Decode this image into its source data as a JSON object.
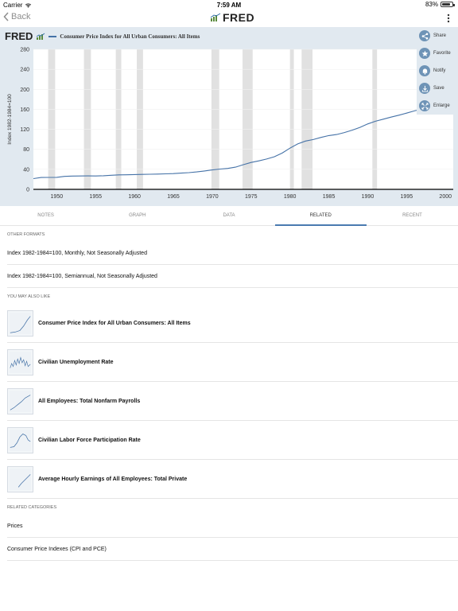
{
  "status": {
    "carrier": "Carrier",
    "time": "7:59 AM",
    "battery": "83%"
  },
  "nav": {
    "back_label": "Back",
    "logo_text": "FRED"
  },
  "chart_header": {
    "logo_text": "FRED",
    "title": "Consumer Price Index for All Urban Consumers: All Items"
  },
  "side_menu": [
    {
      "label": "Share",
      "icon": "share-icon"
    },
    {
      "label": "Favorite",
      "icon": "star-icon"
    },
    {
      "label": "Notify",
      "icon": "bell-icon"
    },
    {
      "label": "Save",
      "icon": "download-icon"
    },
    {
      "label": "Enlarge",
      "icon": "enlarge-icon"
    }
  ],
  "chart_data": {
    "type": "line",
    "title": "Consumer Price Index for All Urban Consumers: All Items",
    "ylabel": "Index 1982-1984=100",
    "xlabel": "",
    "xlim": [
      1947,
      2001
    ],
    "ylim": [
      0,
      280
    ],
    "y_ticks": [
      0,
      40,
      80,
      120,
      160,
      200,
      240,
      280
    ],
    "x_ticks": [
      1950,
      1955,
      1960,
      1965,
      1970,
      1975,
      1980,
      1985,
      1990,
      1995,
      2000
    ],
    "recessions": [
      [
        1948.9,
        1949.8
      ],
      [
        1953.5,
        1954.4
      ],
      [
        1957.6,
        1958.3
      ],
      [
        1960.3,
        1961.1
      ],
      [
        1969.9,
        1970.9
      ],
      [
        1973.9,
        1975.2
      ],
      [
        1980.0,
        1980.5
      ],
      [
        1981.5,
        1982.9
      ],
      [
        1990.6,
        1991.2
      ]
    ],
    "series": [
      {
        "name": "Consumer Price Index for All Urban Consumers: All Items",
        "color": "#4572a7",
        "x": [
          1947,
          1948,
          1949,
          1950,
          1951,
          1952,
          1953,
          1954,
          1955,
          1956,
          1957,
          1958,
          1959,
          1960,
          1961,
          1962,
          1963,
          1964,
          1965,
          1966,
          1967,
          1968,
          1969,
          1970,
          1971,
          1972,
          1973,
          1974,
          1975,
          1976,
          1977,
          1978,
          1979,
          1980,
          1981,
          1982,
          1983,
          1984,
          1985,
          1986,
          1987,
          1988,
          1989,
          1990,
          1991,
          1992,
          1993,
          1994,
          1995,
          1996,
          1997,
          1998,
          1999,
          2000
        ],
        "values": [
          21.5,
          23.7,
          23.8,
          24.1,
          26.0,
          26.5,
          26.7,
          26.9,
          26.8,
          27.2,
          28.1,
          28.9,
          29.1,
          29.6,
          29.9,
          30.2,
          30.6,
          31.0,
          31.5,
          32.4,
          33.4,
          34.8,
          36.7,
          38.8,
          40.5,
          41.8,
          44.4,
          49.3,
          53.8,
          56.9,
          60.6,
          65.2,
          72.6,
          82.4,
          90.9,
          96.5,
          99.6,
          103.9,
          107.6,
          109.6,
          113.6,
          118.3,
          124.0,
          130.7,
          136.2,
          140.3,
          144.5,
          148.2,
          152.4,
          156.9,
          160.5,
          163.0,
          166.6,
          172.2
        ]
      }
    ],
    "grid": true,
    "legend": "none"
  },
  "tabs": [
    {
      "label": "NOTES"
    },
    {
      "label": "GRAPH"
    },
    {
      "label": "DATA"
    },
    {
      "label": "RELATED"
    },
    {
      "label": "RECENT"
    }
  ],
  "other_formats": {
    "heading": "OTHER FORMATS",
    "items": [
      "Index 1982-1984=100, Monthly, Not Seasonally Adjusted",
      "Index 1982-1984=100, Semiannual, Not Seasonally Adjusted"
    ]
  },
  "also_like": {
    "heading": "YOU MAY ALSO LIKE",
    "items": [
      "Consumer Price Index for All Urban Consumers: All Items",
      "Civilian Unemployment Rate",
      "All Employees: Total Nonfarm Payrolls",
      "Civilian Labor Force Participation Rate",
      "Average Hourly Earnings of All Employees: Total Private"
    ]
  },
  "related_categories": {
    "heading": "RELATED CATEGORIES",
    "items": [
      "Prices",
      "Consumer Price Indexes (CPI and PCE)"
    ]
  }
}
